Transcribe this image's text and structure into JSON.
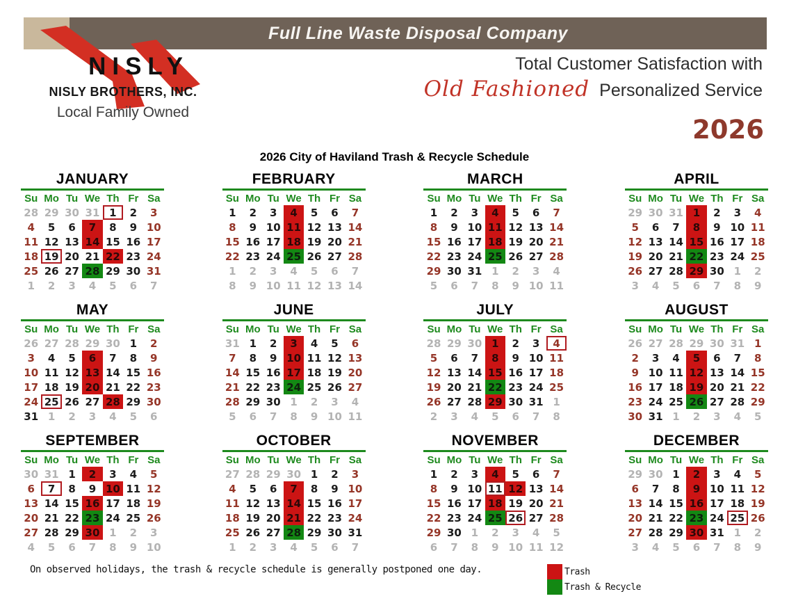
{
  "banner": {
    "title": "Full Line Waste Disposal Company"
  },
  "logo": {
    "name": "NISLY",
    "company": "NISLY BROTHERS, INC.",
    "tagline": "Local Family Owned"
  },
  "slogan": {
    "line1": "Total Customer Satisfaction with",
    "script": "Old Fashioned",
    "line2": "Personalized Service"
  },
  "year": "2026",
  "schedule_title": "2026 City of Haviland Trash & Recycle Schedule",
  "footer_note": "On observed holidays, the trash & recycle schedule is generally postponed one day.",
  "weekday_headers": [
    "Su",
    "Mo",
    "Tu",
    "We",
    "Th",
    "Fr",
    "Sa"
  ],
  "legend": [
    {
      "color": "#cc1414",
      "label": "Trash"
    },
    {
      "color": "#138813",
      "label": "Trash & Recycle"
    }
  ],
  "colors": {
    "banner_bar": "#6f6257",
    "tan_square": "#c9b89c",
    "trash_fill": "#cc1414",
    "recycle_fill": "#138813",
    "holiday_outline": "#b01b20",
    "weekend_text": "#953527",
    "outside_text": "#b3b3b3",
    "weekday_text": "#1c1c1c",
    "month_green": "#1e8a1e",
    "year_maroon": "#8e392c",
    "script_red": "#c13327",
    "logo_red": "#d32f23"
  },
  "cell_legend": "each cell string = day number + text style (o=outside gray, k=black, r=dark red weekend) + optional fill (T=trash red, G=trash&recycle green) + optional B (observed-holiday outline box)",
  "months": [
    {
      "name": "JANUARY",
      "weeks": [
        [
          "28o",
          "29o",
          "30o",
          "31o",
          "1kB",
          "2k",
          "3r"
        ],
        [
          "4r",
          "5k",
          "6k",
          "7kT",
          "8k",
          "9k",
          "10r"
        ],
        [
          "11r",
          "12k",
          "13k",
          "14kT",
          "15k",
          "16k",
          "17r"
        ],
        [
          "18r",
          "19kB",
          "20k",
          "21k",
          "22kT",
          "23k",
          "24r"
        ],
        [
          "25r",
          "26k",
          "27k",
          "28kG",
          "29k",
          "30k",
          "31r"
        ],
        [
          "1o",
          "2o",
          "3o",
          "4o",
          "5o",
          "6o",
          "7o"
        ]
      ]
    },
    {
      "name": "FEBRUARY",
      "weeks": [
        [
          "1k",
          "2k",
          "3k",
          "4kT",
          "5k",
          "6k",
          "7r"
        ],
        [
          "8r",
          "9k",
          "10k",
          "11kT",
          "12k",
          "13k",
          "14r"
        ],
        [
          "15r",
          "16k",
          "17k",
          "18kT",
          "19k",
          "20k",
          "21r"
        ],
        [
          "22r",
          "23k",
          "24k",
          "25kG",
          "26k",
          "27k",
          "28r"
        ],
        [
          "1o",
          "2o",
          "3o",
          "4o",
          "5o",
          "6o",
          "7o"
        ],
        [
          "8o",
          "9o",
          "10o",
          "11o",
          "12o",
          "13o",
          "14o"
        ]
      ]
    },
    {
      "name": "MARCH",
      "weeks": [
        [
          "1k",
          "2k",
          "3k",
          "4kT",
          "5k",
          "6k",
          "7r"
        ],
        [
          "8r",
          "9k",
          "10k",
          "11kT",
          "12k",
          "13k",
          "14r"
        ],
        [
          "15r",
          "16k",
          "17k",
          "18kT",
          "19k",
          "20k",
          "21r"
        ],
        [
          "22r",
          "23k",
          "24k",
          "25kG",
          "26k",
          "27k",
          "28r"
        ],
        [
          "29r",
          "30k",
          "31k",
          "1o",
          "2o",
          "3o",
          "4o"
        ],
        [
          "5o",
          "6o",
          "7o",
          "8o",
          "9o",
          "10o",
          "11o"
        ]
      ]
    },
    {
      "name": "APRIL",
      "weeks": [
        [
          "29o",
          "30o",
          "31o",
          "1kT",
          "2k",
          "3k",
          "4r"
        ],
        [
          "5r",
          "6k",
          "7k",
          "8kT",
          "9k",
          "10k",
          "11r"
        ],
        [
          "12r",
          "13k",
          "14k",
          "15kT",
          "16k",
          "17k",
          "18r"
        ],
        [
          "19r",
          "20k",
          "21k",
          "22kG",
          "23k",
          "24k",
          "25r"
        ],
        [
          "26r",
          "27k",
          "28k",
          "29kT",
          "30k",
          "1o",
          "2o"
        ],
        [
          "3o",
          "4o",
          "5o",
          "6o",
          "7o",
          "8o",
          "9o"
        ]
      ]
    },
    {
      "name": "MAY",
      "weeks": [
        [
          "26o",
          "27o",
          "28o",
          "29o",
          "30o",
          "1k",
          "2r"
        ],
        [
          "3r",
          "4k",
          "5k",
          "6kT",
          "7k",
          "8k",
          "9r"
        ],
        [
          "10r",
          "11k",
          "12k",
          "13kT",
          "14k",
          "15k",
          "16r"
        ],
        [
          "17r",
          "18k",
          "19k",
          "20kT",
          "21k",
          "22k",
          "23r"
        ],
        [
          "24r",
          "25kB",
          "26k",
          "27k",
          "28kT",
          "29k",
          "30r"
        ],
        [
          "31k",
          "1o",
          "2o",
          "3o",
          "4o",
          "5o",
          "6o"
        ]
      ]
    },
    {
      "name": "JUNE",
      "weeks": [
        [
          "31o",
          "1k",
          "2k",
          "3kT",
          "4k",
          "5k",
          "6r"
        ],
        [
          "7r",
          "8k",
          "9k",
          "10kT",
          "11k",
          "12k",
          "13r"
        ],
        [
          "14r",
          "15k",
          "16k",
          "17kT",
          "18k",
          "19k",
          "20r"
        ],
        [
          "21r",
          "22k",
          "23k",
          "24kG",
          "25k",
          "26k",
          "27r"
        ],
        [
          "28r",
          "29k",
          "30k",
          "1o",
          "2o",
          "3o",
          "4o"
        ],
        [
          "5o",
          "6o",
          "7o",
          "8o",
          "9o",
          "10o",
          "11o"
        ]
      ]
    },
    {
      "name": "JULY",
      "weeks": [
        [
          "28o",
          "29o",
          "30o",
          "1kT",
          "2k",
          "3k",
          "4rB"
        ],
        [
          "5r",
          "6k",
          "7k",
          "8kT",
          "9k",
          "10k",
          "11r"
        ],
        [
          "12r",
          "13k",
          "14k",
          "15kT",
          "16k",
          "17k",
          "18r"
        ],
        [
          "19r",
          "20k",
          "21k",
          "22kG",
          "23k",
          "24k",
          "25r"
        ],
        [
          "26r",
          "27k",
          "28k",
          "29kT",
          "30k",
          "31k",
          "1o"
        ],
        [
          "2o",
          "3o",
          "4o",
          "5o",
          "6o",
          "7o",
          "8o"
        ]
      ]
    },
    {
      "name": "AUGUST",
      "weeks": [
        [
          "26o",
          "27o",
          "28o",
          "29o",
          "30o",
          "31o",
          "1r"
        ],
        [
          "2r",
          "3k",
          "4k",
          "5kT",
          "6k",
          "7k",
          "8r"
        ],
        [
          "9r",
          "10k",
          "11k",
          "12kT",
          "13k",
          "14k",
          "15r"
        ],
        [
          "16r",
          "17k",
          "18k",
          "19kT",
          "20k",
          "21k",
          "22r"
        ],
        [
          "23r",
          "24k",
          "25k",
          "26kG",
          "27k",
          "28k",
          "29r"
        ],
        [
          "30r",
          "31k",
          "1o",
          "2o",
          "3o",
          "4o",
          "5o"
        ]
      ]
    },
    {
      "name": "SEPTEMBER",
      "weeks": [
        [
          "30o",
          "31o",
          "1k",
          "2kT",
          "3k",
          "4k",
          "5r"
        ],
        [
          "6r",
          "7kB",
          "8k",
          "9k",
          "10kT",
          "11k",
          "12r"
        ],
        [
          "13r",
          "14k",
          "15k",
          "16kT",
          "17k",
          "18k",
          "19r"
        ],
        [
          "20r",
          "21k",
          "22k",
          "23kG",
          "24k",
          "25k",
          "26r"
        ],
        [
          "27r",
          "28k",
          "29k",
          "30kT",
          "1o",
          "2o",
          "3o"
        ],
        [
          "4o",
          "5o",
          "6o",
          "7o",
          "8o",
          "9o",
          "10o"
        ]
      ]
    },
    {
      "name": "OCTOBER",
      "weeks": [
        [
          "27o",
          "28o",
          "29o",
          "30o",
          "1k",
          "2k",
          "3r"
        ],
        [
          "4r",
          "5k",
          "6k",
          "7kT",
          "8k",
          "9k",
          "10r"
        ],
        [
          "11r",
          "12k",
          "13k",
          "14kT",
          "15k",
          "16k",
          "17r"
        ],
        [
          "18r",
          "19k",
          "20k",
          "21kT",
          "22k",
          "23k",
          "24r"
        ],
        [
          "25r",
          "26k",
          "27k",
          "28kG",
          "29k",
          "30k",
          "31k"
        ],
        [
          "1o",
          "2o",
          "3o",
          "4o",
          "5o",
          "6o",
          "7o"
        ]
      ]
    },
    {
      "name": "NOVEMBER",
      "weeks": [
        [
          "1k",
          "2k",
          "3k",
          "4kT",
          "5k",
          "6k",
          "7r"
        ],
        [
          "8r",
          "9k",
          "10k",
          "11kB",
          "12kT",
          "13k",
          "14r"
        ],
        [
          "15r",
          "16k",
          "17k",
          "18kT",
          "19k",
          "20k",
          "21r"
        ],
        [
          "22r",
          "23k",
          "24k",
          "25kG",
          "26kB",
          "27k",
          "28r"
        ],
        [
          "29r",
          "30k",
          "1o",
          "2o",
          "3o",
          "4o",
          "5o"
        ],
        [
          "6o",
          "7o",
          "8o",
          "9o",
          "10o",
          "11o",
          "12o"
        ]
      ]
    },
    {
      "name": "DECEMBER",
      "weeks": [
        [
          "29o",
          "30o",
          "1k",
          "2kT",
          "3k",
          "4k",
          "5r"
        ],
        [
          "6r",
          "7k",
          "8k",
          "9kT",
          "10k",
          "11k",
          "12r"
        ],
        [
          "13r",
          "14k",
          "15k",
          "16kT",
          "17k",
          "18k",
          "19r"
        ],
        [
          "20r",
          "21k",
          "22k",
          "23kG",
          "24k",
          "25kB",
          "26r"
        ],
        [
          "27r",
          "28k",
          "29k",
          "30kT",
          "31k",
          "1o",
          "2o"
        ],
        [
          "3o",
          "4o",
          "5o",
          "6o",
          "7o",
          "8o",
          "9o"
        ]
      ]
    }
  ]
}
